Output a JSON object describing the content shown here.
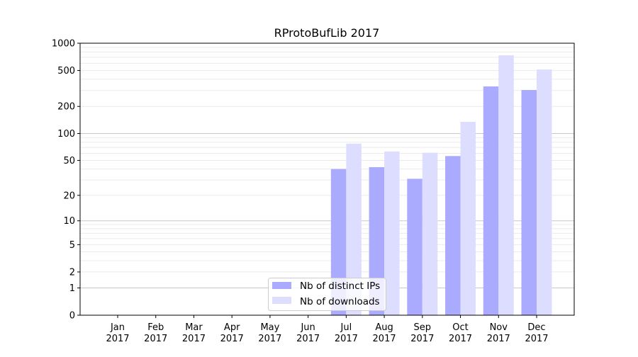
{
  "chart_data": {
    "type": "bar",
    "title": "RProtoBufLib 2017",
    "xlabel": "",
    "ylabel": "",
    "yscale": "log(1+y)",
    "ylim": [
      0,
      1000
    ],
    "yticks": [
      0,
      1,
      2,
      5,
      10,
      20,
      50,
      100,
      200,
      500,
      1000
    ],
    "grid": true,
    "legend": "bottom-center",
    "categories": [
      "Jan\n2017",
      "Feb\n2017",
      "Mar\n2017",
      "Apr\n2017",
      "May\n2017",
      "Jun\n2017",
      "Jul\n2017",
      "Aug\n2017",
      "Sep\n2017",
      "Oct\n2017",
      "Nov\n2017",
      "Dec\n2017"
    ],
    "series": [
      {
        "name": "Nb of distinct IPs",
        "color": "#aaaaff",
        "values": [
          0,
          0,
          0,
          0,
          0,
          0,
          40,
          42,
          31,
          56,
          333,
          304
        ]
      },
      {
        "name": "Nb of downloads",
        "color": "#ddddff",
        "values": [
          0,
          0,
          0,
          0,
          0,
          0,
          77,
          63,
          61,
          135,
          735,
          513
        ]
      }
    ]
  }
}
